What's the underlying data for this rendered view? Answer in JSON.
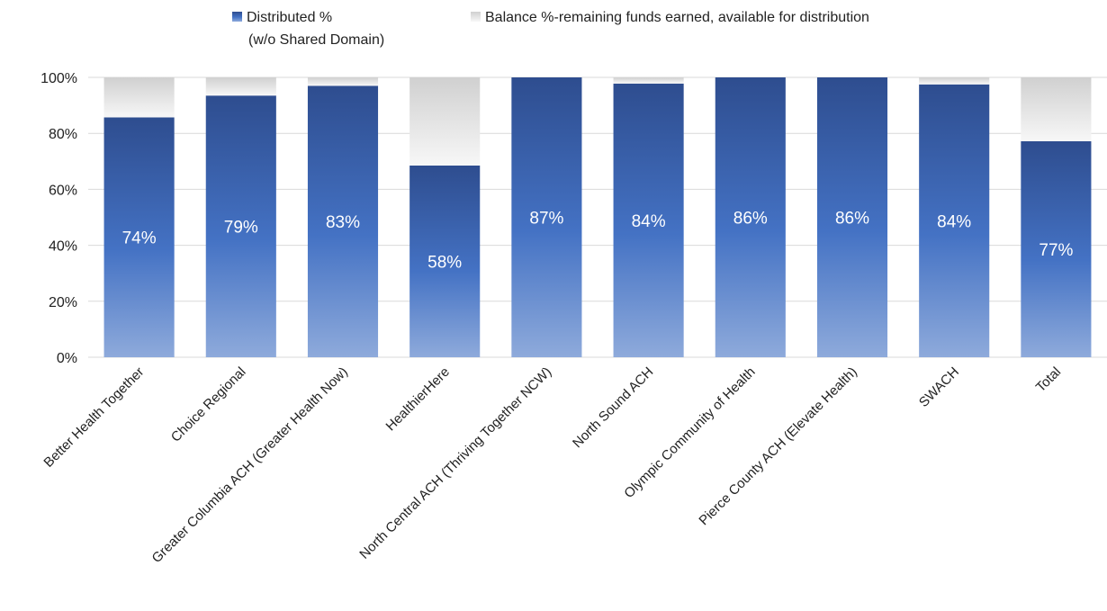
{
  "chart_data": {
    "type": "bar",
    "stacked": true,
    "title": "",
    "xlabel": "",
    "ylabel": "",
    "ylim": [
      0,
      1
    ],
    "yticks": [
      "0%",
      "20%",
      "40%",
      "60%",
      "80%",
      "100%"
    ],
    "grid": true,
    "legend_position": "top",
    "categories": [
      "Better Health Together",
      "Choice Regional",
      "Greater Columbia ACH (Greater Health Now)",
      "HealthierHere",
      "North Central ACH (Thriving Together NCW)",
      "North Sound ACH",
      "Olympic Community of Health",
      "Pierce County ACH (Elevate Health)",
      "SWACH",
      "Total"
    ],
    "series": [
      {
        "name": "Distributed % (w/o Shared Domain)",
        "legend_line1": "Distributed %",
        "legend_line2": "(w/o Shared Domain)",
        "color": "#2f5597",
        "values": [
          0.857,
          0.935,
          0.97,
          0.685,
          1.0,
          0.978,
          1.0,
          1.0,
          0.975,
          0.772
        ],
        "data_labels": [
          "74%",
          "79%",
          "83%",
          "58%",
          "87%",
          "84%",
          "86%",
          "86%",
          "84%",
          "77%"
        ]
      },
      {
        "name": "Balance %-remaining funds earned, available for distribution",
        "legend_line1": "Balance %-remaining funds earned, available for distribution",
        "color": "#d9d9d9",
        "values": [
          0.143,
          0.065,
          0.03,
          0.315,
          0.0,
          0.022,
          0.0,
          0.0,
          0.025,
          0.228
        ]
      }
    ]
  }
}
